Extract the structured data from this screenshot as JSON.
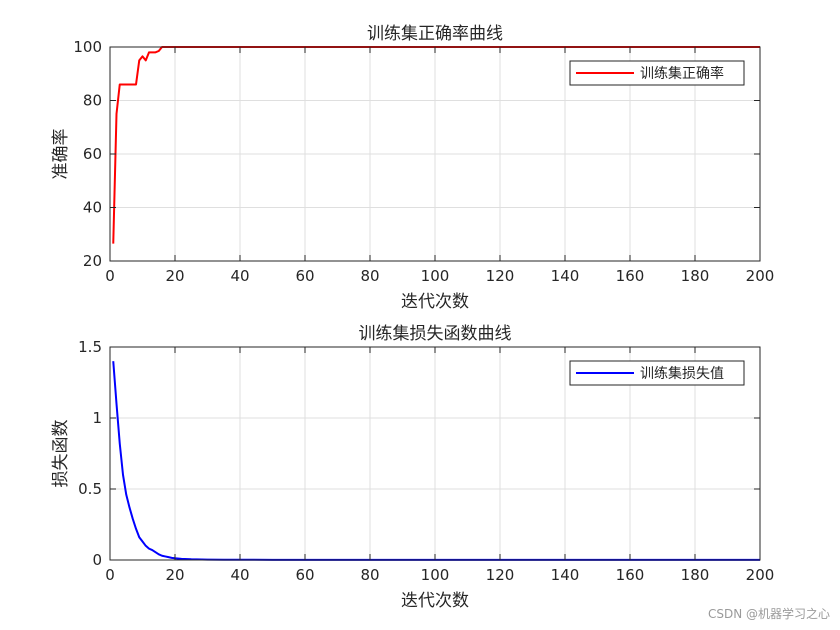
{
  "chart_data": [
    {
      "type": "line",
      "title": "训练集正确率曲线",
      "xlabel": "迭代次数",
      "ylabel": "准确率",
      "xlim": [
        0,
        200
      ],
      "ylim": [
        20,
        100
      ],
      "xticks": [
        0,
        20,
        40,
        60,
        80,
        100,
        120,
        140,
        160,
        180,
        200
      ],
      "yticks": [
        20,
        40,
        60,
        80,
        100
      ],
      "grid": true,
      "legend_position": "top-right",
      "series": [
        {
          "name": "训练集正确率",
          "color": "#ff0000",
          "x": [
            1,
            2,
            3,
            4,
            5,
            6,
            7,
            8,
            9,
            10,
            11,
            12,
            13,
            14,
            15,
            16,
            17,
            20,
            40,
            60,
            80,
            100,
            120,
            140,
            160,
            180,
            200
          ],
          "y": [
            26.5,
            75,
            86,
            86,
            86,
            86,
            86,
            86,
            95,
            96.5,
            95,
            98,
            98,
            98,
            98.5,
            100,
            100,
            100,
            100,
            100,
            100,
            100,
            100,
            100,
            100,
            100,
            100
          ]
        }
      ]
    },
    {
      "type": "line",
      "title": "训练集损失函数曲线",
      "xlabel": "迭代次数",
      "ylabel": "损失函数",
      "xlim": [
        0,
        200
      ],
      "ylim": [
        0,
        1.5
      ],
      "xticks": [
        0,
        20,
        40,
        60,
        80,
        100,
        120,
        140,
        160,
        180,
        200
      ],
      "yticks": [
        0,
        0.5,
        1,
        1.5
      ],
      "grid": true,
      "legend_position": "top-right",
      "series": [
        {
          "name": "训练集损失值",
          "color": "#0000ff",
          "x": [
            1,
            2,
            3,
            4,
            5,
            6,
            7,
            8,
            9,
            10,
            11,
            12,
            13,
            14,
            15,
            16,
            17,
            18,
            19,
            20,
            22,
            25,
            30,
            35,
            40,
            50,
            60,
            80,
            100,
            120,
            140,
            160,
            180,
            200
          ],
          "y": [
            1.4,
            1.1,
            0.82,
            0.6,
            0.46,
            0.37,
            0.29,
            0.22,
            0.16,
            0.13,
            0.1,
            0.08,
            0.07,
            0.055,
            0.04,
            0.03,
            0.025,
            0.02,
            0.015,
            0.012,
            0.008,
            0.005,
            0.003,
            0.002,
            0.002,
            0.001,
            0.001,
            0.001,
            0.001,
            0.001,
            0.001,
            0.001,
            0.001,
            0.001
          ]
        }
      ]
    }
  ],
  "watermark": "CSDN @机器学习之心"
}
